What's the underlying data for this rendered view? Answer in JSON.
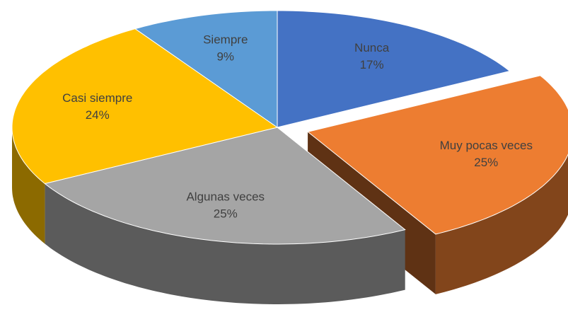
{
  "chart_data": {
    "type": "pie",
    "categories": [
      "Nunca",
      "Muy pocas veces",
      "Algunas veces",
      "Casi siempre",
      "Siempre"
    ],
    "values": [
      17,
      25,
      25,
      24,
      9
    ],
    "value_labels": [
      "17%",
      "25%",
      "25%",
      "24%",
      "9%"
    ],
    "colors": [
      "#4472c4",
      "#ed7d31",
      "#a5a5a5",
      "#ffc000",
      "#5b9bd5"
    ],
    "exploded": [
      false,
      true,
      false,
      false,
      false
    ],
    "three_d": true
  }
}
